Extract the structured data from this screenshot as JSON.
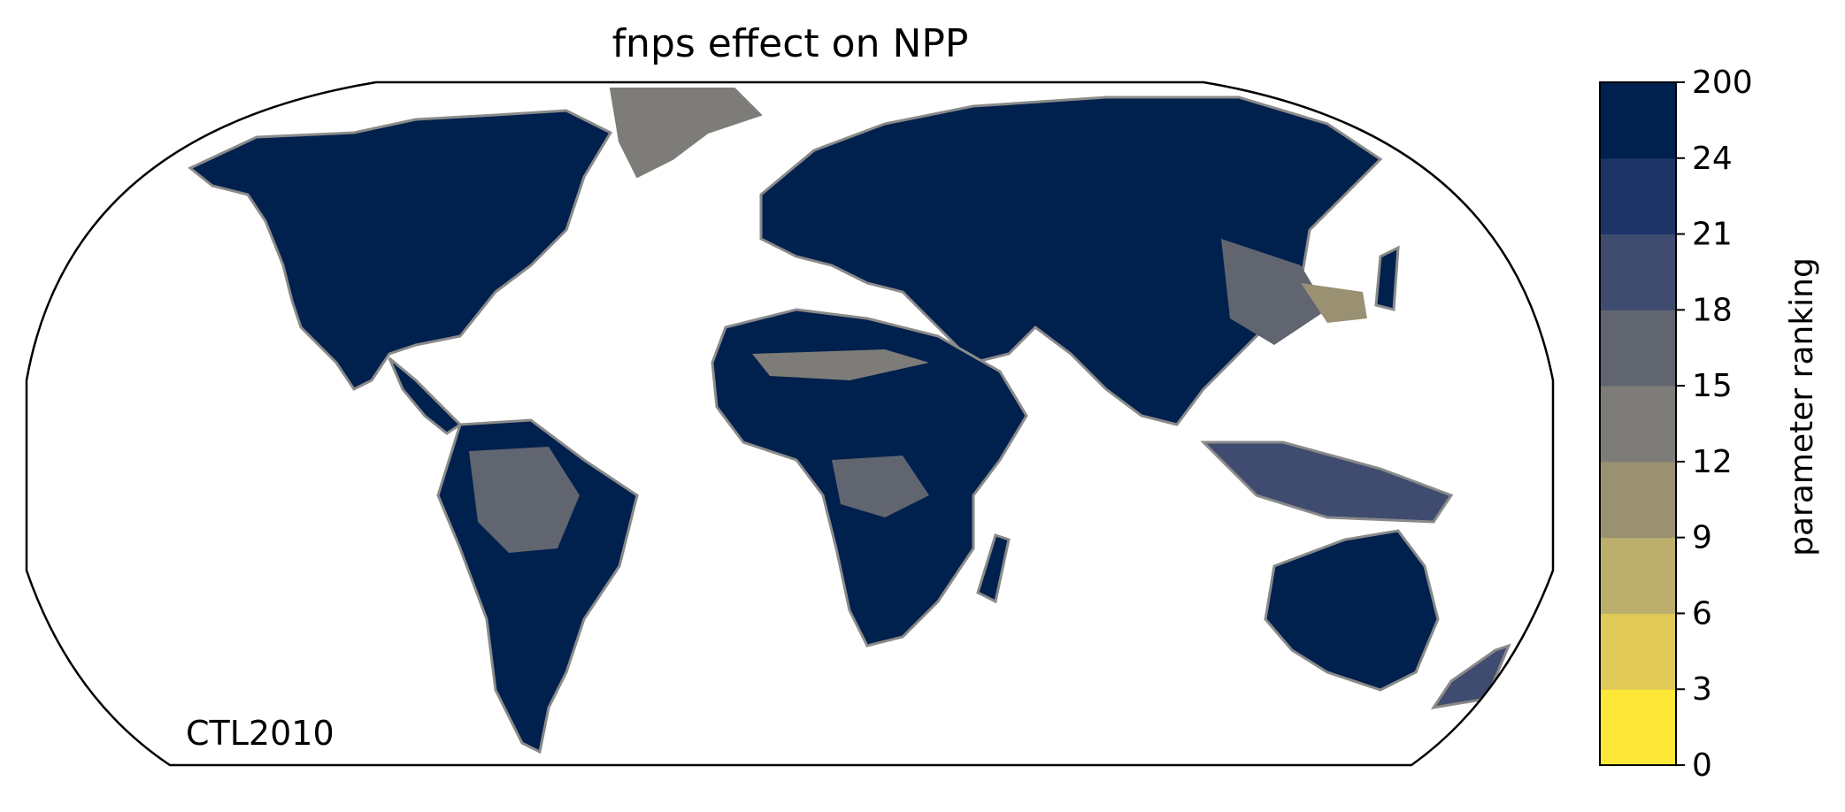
{
  "title": "fnps effect on NPP",
  "run_label": "CTL2010",
  "colorbar": {
    "label": "parameter ranking",
    "ticks": [
      "0",
      "3",
      "6",
      "9",
      "12",
      "15",
      "18",
      "21",
      "24",
      "200"
    ],
    "colors": [
      "#fde737",
      "#e0c957",
      "#bcae6d",
      "#9a9172",
      "#7d7c78",
      "#616570",
      "#3f4c6f",
      "#1d3469",
      "#00204d"
    ]
  },
  "map": {
    "projection": "Robinson",
    "land_fill": "#00204d",
    "coastline_color": "#8a8a8a",
    "dominant_ranking": "24-200"
  }
}
